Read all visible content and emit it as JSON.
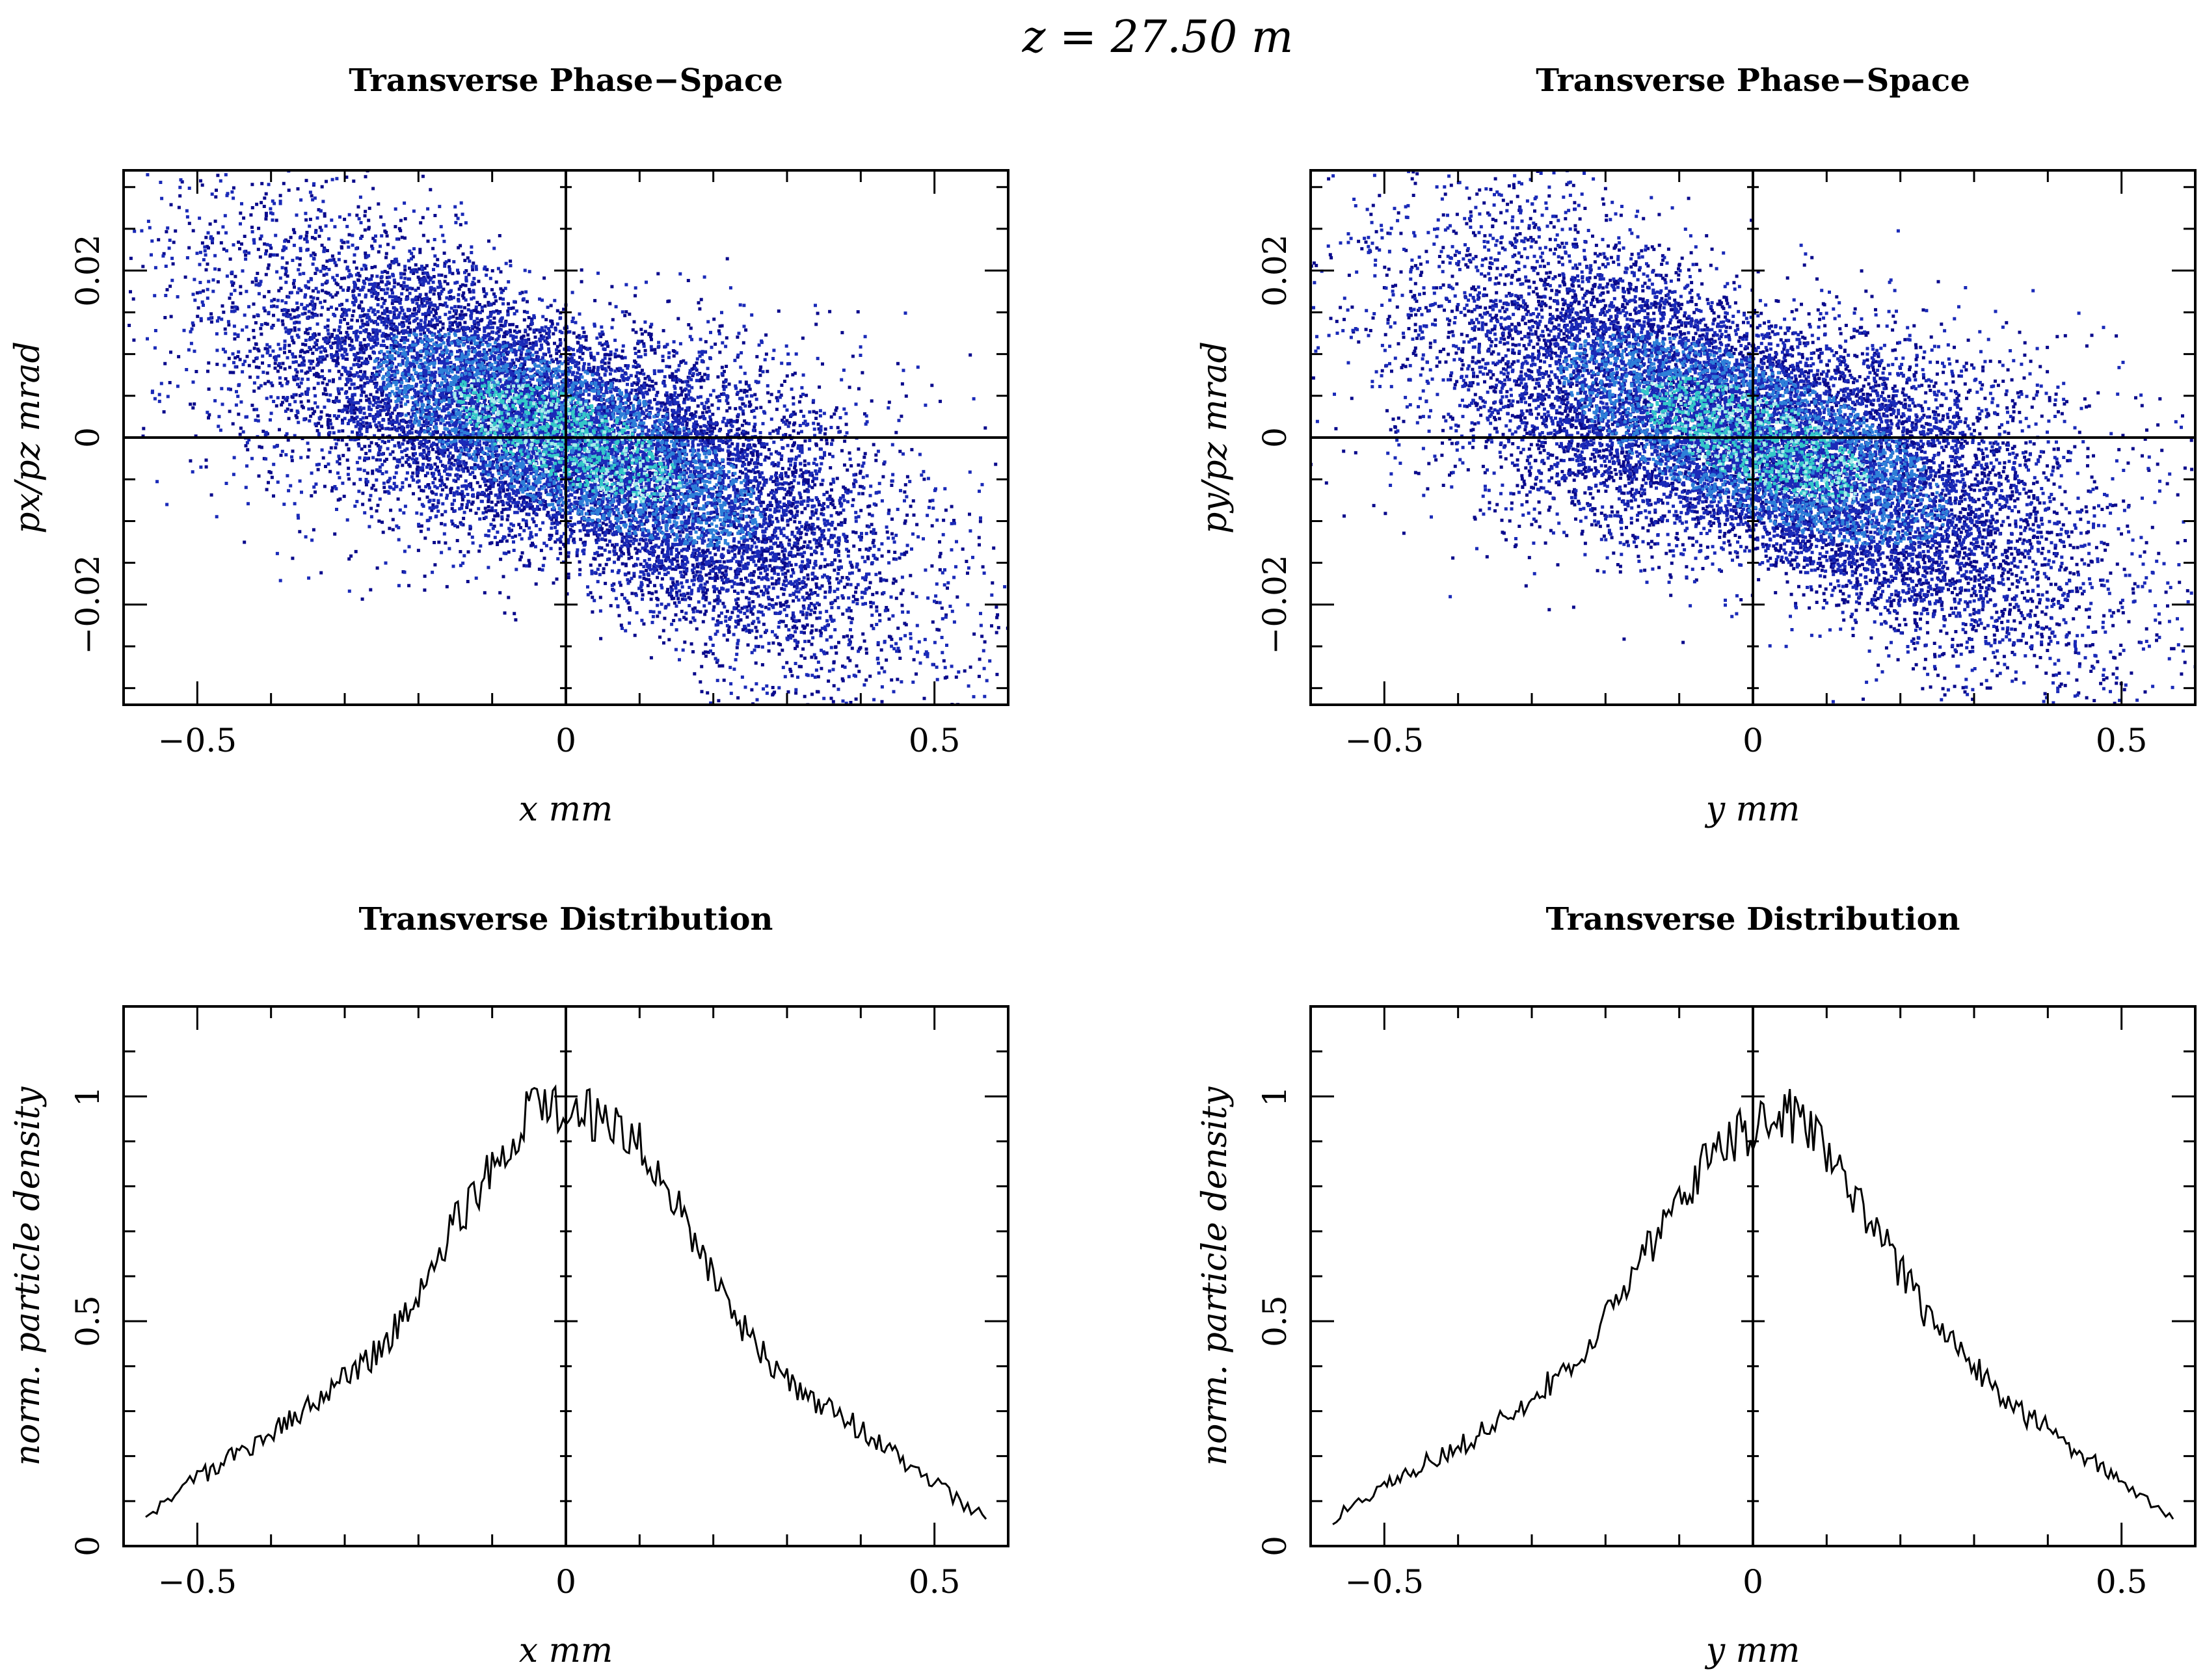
{
  "figure_title": "z = 27.50 m",
  "colors": {
    "axes": "#000000",
    "scatter_density": [
      "#0a0a8c",
      "#1a2ab8",
      "#2e7fd8",
      "#34c8c8",
      "#a8ecec"
    ],
    "line": "#000000"
  },
  "chart_data": [
    {
      "type": "scatter",
      "title": "Transverse Phase−Space",
      "xlabel": "x mm",
      "ylabel": "px/pz mrad",
      "xlim": [
        -0.6,
        0.6
      ],
      "ylim": [
        -0.032,
        0.032
      ],
      "xticks": [
        -0.5,
        0,
        0.5
      ],
      "xtick_labels": [
        "−0.5",
        "0",
        "0.5"
      ],
      "yticks": [
        -0.02,
        0,
        0.02
      ],
      "ytick_labels": [
        "−0.02",
        "0",
        "0.02"
      ],
      "zero_lines": true,
      "density": {
        "description_of_cloud": "tilted Gaussian cloud, negative correlation",
        "center": [
          0.0,
          0.0
        ],
        "sigma_x": 0.22,
        "slope": -0.035,
        "sigma_y_spread": 0.0075,
        "n_points": 14000
      }
    },
    {
      "type": "scatter",
      "title": "Transverse Phase−Space",
      "xlabel": "y mm",
      "ylabel": "py/pz mrad",
      "xlim": [
        -0.6,
        0.6
      ],
      "ylim": [
        -0.032,
        0.032
      ],
      "xticks": [
        -0.5,
        0,
        0.5
      ],
      "xtick_labels": [
        "−0.5",
        "0",
        "0.5"
      ],
      "yticks": [
        -0.02,
        0,
        0.02
      ],
      "ytick_labels": [
        "−0.02",
        "0",
        "0.02"
      ],
      "zero_lines": true,
      "density": {
        "center": [
          0.0,
          0.0
        ],
        "sigma_x": 0.22,
        "slope": -0.033,
        "sigma_y_spread": 0.0078,
        "n_points": 14000
      }
    },
    {
      "type": "line",
      "title": "Transverse Distribution",
      "xlabel": "x mm",
      "ylabel": "norm. particle density",
      "xlim": [
        -0.6,
        0.6
      ],
      "ylim": [
        0,
        1.2
      ],
      "xticks": [
        -0.5,
        0,
        0.5
      ],
      "xtick_labels": [
        "−0.5",
        "0",
        "0.5"
      ],
      "yticks": [
        0,
        0.5,
        1
      ],
      "ytick_labels": [
        "0",
        "0.5",
        "1"
      ],
      "zero_lines": true,
      "x": [
        -0.57,
        -0.5,
        -0.45,
        -0.4,
        -0.35,
        -0.3,
        -0.25,
        -0.2,
        -0.15,
        -0.1,
        -0.05,
        0.0,
        0.05,
        0.1,
        0.15,
        0.2,
        0.25,
        0.3,
        0.35,
        0.4,
        0.45,
        0.5,
        0.57
      ],
      "y": [
        0.07,
        0.15,
        0.2,
        0.25,
        0.31,
        0.37,
        0.44,
        0.56,
        0.72,
        0.84,
        0.96,
        0.97,
        0.95,
        0.9,
        0.76,
        0.59,
        0.46,
        0.37,
        0.31,
        0.26,
        0.2,
        0.14,
        0.06
      ]
    },
    {
      "type": "line",
      "title": "Transverse Distribution",
      "xlabel": "y mm",
      "ylabel": "norm. particle density",
      "xlim": [
        -0.6,
        0.6
      ],
      "ylim": [
        0,
        1.2
      ],
      "xticks": [
        -0.5,
        0,
        0.5
      ],
      "xtick_labels": [
        "−0.5",
        "0",
        "0.5"
      ],
      "yticks": [
        0,
        0.5,
        1
      ],
      "ytick_labels": [
        "0",
        "0.5",
        "1"
      ],
      "zero_lines": true,
      "x": [
        -0.57,
        -0.5,
        -0.45,
        -0.4,
        -0.35,
        -0.3,
        -0.25,
        -0.2,
        -0.15,
        -0.1,
        -0.05,
        0.0,
        0.05,
        0.1,
        0.15,
        0.2,
        0.25,
        0.3,
        0.35,
        0.4,
        0.45,
        0.5,
        0.57
      ],
      "y": [
        0.06,
        0.14,
        0.18,
        0.22,
        0.27,
        0.33,
        0.4,
        0.5,
        0.64,
        0.77,
        0.88,
        0.93,
        0.96,
        0.88,
        0.75,
        0.61,
        0.48,
        0.4,
        0.31,
        0.26,
        0.2,
        0.14,
        0.06
      ]
    }
  ]
}
